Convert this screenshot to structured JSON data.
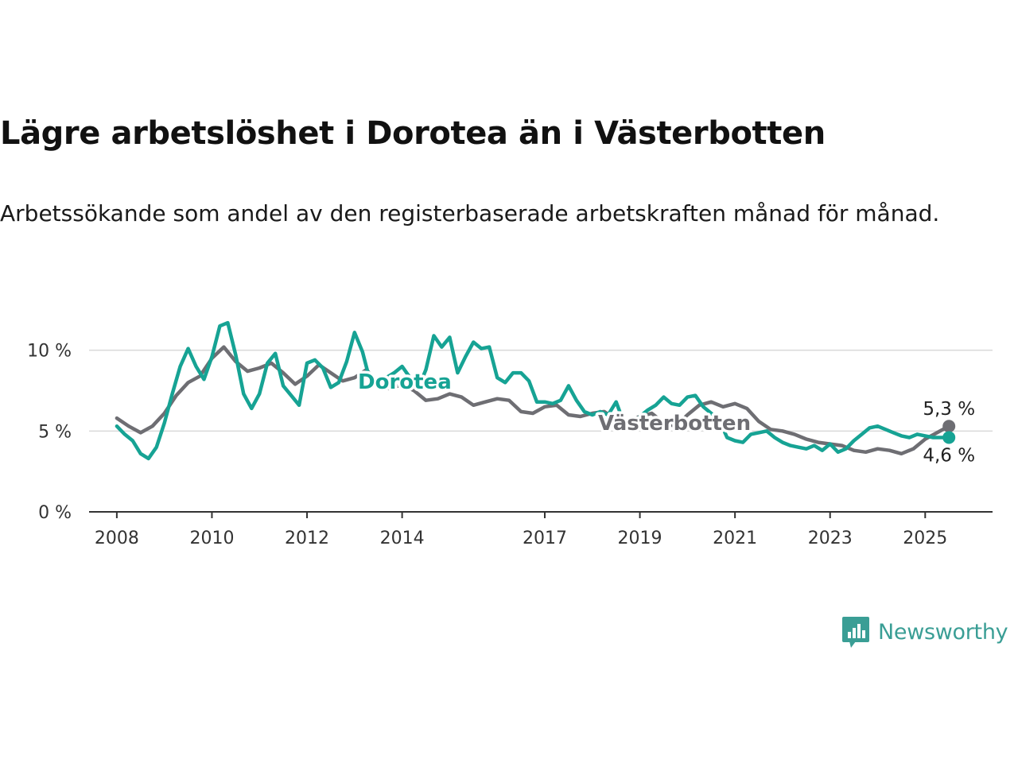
{
  "title": "Lägre arbetslöshet i Dorotea än i Västerbotten",
  "subtitle": "Arbetssökande som andel av den registerbaserade arbetskraften månad för månad.",
  "brand": {
    "name": "Newsworthy",
    "icon": "newsworthy-logo-icon",
    "color": "#3a9e95"
  },
  "chart_data": {
    "type": "line",
    "title": "Lägre arbetslöshet i Dorotea än i Västerbotten",
    "xlabel": "",
    "ylabel": "",
    "xlim": [
      "2007-06",
      "2026-06"
    ],
    "ylim": [
      0,
      12
    ],
    "grid": true,
    "legend": "inline labels",
    "x_ticks": [
      "2008",
      "2010",
      "2012",
      "2014",
      "2017",
      "2019",
      "2021",
      "2023",
      "2025"
    ],
    "y_ticks": [
      0,
      5,
      10
    ],
    "y_tick_labels": [
      "0 %",
      "5 %",
      "10 %"
    ],
    "series": [
      {
        "name": "Västerbotten",
        "color": "#6e6e73",
        "end_label": "5,3 %",
        "points": [
          [
            "2008-01",
            5.8
          ],
          [
            "2008-04",
            5.3
          ],
          [
            "2008-07",
            4.9
          ],
          [
            "2008-10",
            5.3
          ],
          [
            "2009-01",
            6.1
          ],
          [
            "2009-04",
            7.2
          ],
          [
            "2009-07",
            8.0
          ],
          [
            "2009-10",
            8.4
          ],
          [
            "2010-01",
            9.5
          ],
          [
            "2010-04",
            10.2
          ],
          [
            "2010-07",
            9.3
          ],
          [
            "2010-10",
            8.7
          ],
          [
            "2011-01",
            8.9
          ],
          [
            "2011-04",
            9.2
          ],
          [
            "2011-07",
            8.6
          ],
          [
            "2011-10",
            7.9
          ],
          [
            "2012-01",
            8.4
          ],
          [
            "2012-04",
            9.1
          ],
          [
            "2012-07",
            8.6
          ],
          [
            "2012-10",
            8.1
          ],
          [
            "2013-01",
            8.3
          ],
          [
            "2013-04",
            8.8
          ],
          [
            "2013-07",
            7.9
          ],
          [
            "2013-10",
            7.6
          ],
          [
            "2014-01",
            7.9
          ],
          [
            "2014-04",
            7.5
          ],
          [
            "2014-07",
            6.9
          ],
          [
            "2014-10",
            7.0
          ],
          [
            "2015-01",
            7.3
          ],
          [
            "2015-04",
            7.1
          ],
          [
            "2015-07",
            6.6
          ],
          [
            "2015-10",
            6.8
          ],
          [
            "2016-01",
            7.0
          ],
          [
            "2016-04",
            6.9
          ],
          [
            "2016-07",
            6.2
          ],
          [
            "2016-10",
            6.1
          ],
          [
            "2017-01",
            6.5
          ],
          [
            "2017-04",
            6.6
          ],
          [
            "2017-07",
            6.0
          ],
          [
            "2017-10",
            5.9
          ],
          [
            "2018-01",
            6.1
          ],
          [
            "2018-04",
            6.2
          ],
          [
            "2018-07",
            5.7
          ],
          [
            "2018-10",
            5.6
          ],
          [
            "2019-01",
            5.9
          ],
          [
            "2019-04",
            6.1
          ],
          [
            "2019-07",
            5.5
          ],
          [
            "2019-10",
            5.3
          ],
          [
            "2020-01",
            6.0
          ],
          [
            "2020-04",
            6.6
          ],
          [
            "2020-07",
            6.8
          ],
          [
            "2020-10",
            6.5
          ],
          [
            "2021-01",
            6.7
          ],
          [
            "2021-04",
            6.4
          ],
          [
            "2021-07",
            5.6
          ],
          [
            "2021-10",
            5.1
          ],
          [
            "2022-01",
            5.0
          ],
          [
            "2022-04",
            4.8
          ],
          [
            "2022-07",
            4.5
          ],
          [
            "2022-10",
            4.3
          ],
          [
            "2023-01",
            4.2
          ],
          [
            "2023-04",
            4.1
          ],
          [
            "2023-07",
            3.8
          ],
          [
            "2023-10",
            3.7
          ],
          [
            "2024-01",
            3.9
          ],
          [
            "2024-04",
            3.8
          ],
          [
            "2024-07",
            3.6
          ],
          [
            "2024-10",
            3.9
          ],
          [
            "2025-01",
            4.5
          ],
          [
            "2025-04",
            4.9
          ],
          [
            "2025-07",
            5.3
          ]
        ]
      },
      {
        "name": "Dorotea",
        "color": "#16a394",
        "end_label": "4,6 %",
        "points": [
          [
            "2008-01",
            5.3
          ],
          [
            "2008-03",
            4.8
          ],
          [
            "2008-05",
            4.4
          ],
          [
            "2008-07",
            3.6
          ],
          [
            "2008-09",
            3.3
          ],
          [
            "2008-11",
            4.0
          ],
          [
            "2009-01",
            5.5
          ],
          [
            "2009-03",
            7.3
          ],
          [
            "2009-05",
            9.0
          ],
          [
            "2009-07",
            10.1
          ],
          [
            "2009-09",
            9.0
          ],
          [
            "2009-11",
            8.2
          ],
          [
            "2010-01",
            9.6
          ],
          [
            "2010-03",
            11.5
          ],
          [
            "2010-05",
            11.7
          ],
          [
            "2010-07",
            9.7
          ],
          [
            "2010-09",
            7.3
          ],
          [
            "2010-11",
            6.4
          ],
          [
            "2011-01",
            7.3
          ],
          [
            "2011-03",
            9.2
          ],
          [
            "2011-05",
            9.8
          ],
          [
            "2011-07",
            7.8
          ],
          [
            "2011-09",
            7.2
          ],
          [
            "2011-11",
            6.6
          ],
          [
            "2012-01",
            9.2
          ],
          [
            "2012-03",
            9.4
          ],
          [
            "2012-05",
            8.9
          ],
          [
            "2012-07",
            7.7
          ],
          [
            "2012-09",
            8.0
          ],
          [
            "2012-11",
            9.3
          ],
          [
            "2013-01",
            11.1
          ],
          [
            "2013-03",
            9.9
          ],
          [
            "2013-05",
            8.0
          ],
          [
            "2013-07",
            7.9
          ],
          [
            "2013-09",
            8.3
          ],
          [
            "2013-11",
            8.6
          ],
          [
            "2014-01",
            9.0
          ],
          [
            "2014-03",
            8.3
          ],
          [
            "2014-05",
            7.6
          ],
          [
            "2014-07",
            8.8
          ],
          [
            "2014-09",
            10.9
          ],
          [
            "2014-11",
            10.2
          ],
          [
            "2015-01",
            10.8
          ],
          [
            "2015-03",
            8.6
          ],
          [
            "2015-05",
            9.6
          ],
          [
            "2015-07",
            10.5
          ],
          [
            "2015-09",
            10.1
          ],
          [
            "2015-11",
            10.2
          ],
          [
            "2016-01",
            8.3
          ],
          [
            "2016-03",
            8.0
          ],
          [
            "2016-05",
            8.6
          ],
          [
            "2016-07",
            8.6
          ],
          [
            "2016-09",
            8.1
          ],
          [
            "2016-11",
            6.8
          ],
          [
            "2017-01",
            6.8
          ],
          [
            "2017-03",
            6.7
          ],
          [
            "2017-05",
            6.9
          ],
          [
            "2017-07",
            7.8
          ],
          [
            "2017-09",
            6.9
          ],
          [
            "2017-11",
            6.2
          ],
          [
            "2018-01",
            6.0
          ],
          [
            "2018-03",
            6.2
          ],
          [
            "2018-05",
            6.0
          ],
          [
            "2018-07",
            6.8
          ],
          [
            "2018-09",
            5.5
          ],
          [
            "2018-11",
            5.0
          ],
          [
            "2019-01",
            5.9
          ],
          [
            "2019-03",
            6.3
          ],
          [
            "2019-05",
            6.6
          ],
          [
            "2019-07",
            7.1
          ],
          [
            "2019-09",
            6.7
          ],
          [
            "2019-11",
            6.6
          ],
          [
            "2020-01",
            7.1
          ],
          [
            "2020-03",
            7.2
          ],
          [
            "2020-05",
            6.5
          ],
          [
            "2020-07",
            6.1
          ],
          [
            "2020-09",
            5.7
          ],
          [
            "2020-11",
            4.6
          ],
          [
            "2021-01",
            4.4
          ],
          [
            "2021-03",
            4.3
          ],
          [
            "2021-05",
            4.8
          ],
          [
            "2021-07",
            4.9
          ],
          [
            "2021-09",
            5.0
          ],
          [
            "2021-11",
            4.6
          ],
          [
            "2022-01",
            4.3
          ],
          [
            "2022-03",
            4.1
          ],
          [
            "2022-05",
            4.0
          ],
          [
            "2022-07",
            3.9
          ],
          [
            "2022-09",
            4.1
          ],
          [
            "2022-11",
            3.8
          ],
          [
            "2023-01",
            4.2
          ],
          [
            "2023-03",
            3.7
          ],
          [
            "2023-05",
            3.9
          ],
          [
            "2023-07",
            4.4
          ],
          [
            "2023-09",
            4.8
          ],
          [
            "2023-11",
            5.2
          ],
          [
            "2024-01",
            5.3
          ],
          [
            "2024-03",
            5.1
          ],
          [
            "2024-05",
            4.9
          ],
          [
            "2024-07",
            4.7
          ],
          [
            "2024-09",
            4.6
          ],
          [
            "2024-11",
            4.8
          ],
          [
            "2025-01",
            4.7
          ],
          [
            "2025-03",
            4.6
          ],
          [
            "2025-05",
            4.6
          ],
          [
            "2025-07",
            4.6
          ]
        ]
      }
    ]
  }
}
